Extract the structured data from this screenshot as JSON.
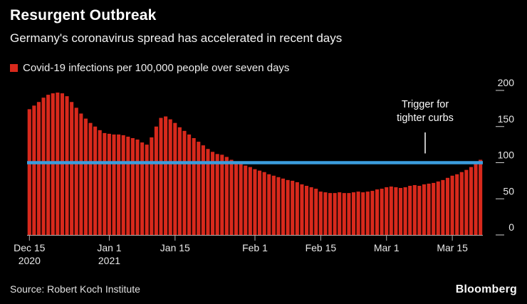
{
  "header": {
    "title": "Resurgent Outbreak",
    "subtitle": "Germany's coronavirus spread has accelerated in recent days",
    "legend_label": "Covid-19 infections per 100,000 people over seven days"
  },
  "annotation": {
    "line1": "Trigger for",
    "line2": "tighter curbs"
  },
  "footer": {
    "source": "Source: Robert Koch Institute",
    "logo": "Bloomberg"
  },
  "colors": {
    "background": "#000000",
    "bar": "#d8291c",
    "reference_line": "#3b9dde",
    "axis": "#b0b0b0",
    "tick_label": "#e8e8e8"
  },
  "chart_data": {
    "type": "bar",
    "title": "Resurgent Outbreak",
    "subtitle": "Germany's coronavirus spread has accelerated in recent days",
    "legend": "Covid-19 infections per 100,000 people over seven days",
    "ylabel": "Covid-19 infections per 100,000 people over seven days",
    "ylim": [
      0,
      200
    ],
    "yticks": [
      200,
      150,
      100,
      50,
      0
    ],
    "y_axis_side": "right",
    "grid": false,
    "x_ticks": [
      {
        "label": "Dec 15",
        "sublabel": "2020",
        "index": 0
      },
      {
        "label": "Jan 1",
        "sublabel": "2021",
        "index": 17
      },
      {
        "label": "Jan 15",
        "sublabel": "",
        "index": 31
      },
      {
        "label": "Feb 1",
        "sublabel": "",
        "index": 48
      },
      {
        "label": "Feb 15",
        "sublabel": "",
        "index": 62
      },
      {
        "label": "Mar 1",
        "sublabel": "",
        "index": 76
      },
      {
        "label": "Mar 15",
        "sublabel": "",
        "index": 90
      }
    ],
    "values": [
      174,
      179,
      184,
      190,
      194,
      196,
      197,
      196,
      192,
      184,
      176,
      168,
      161,
      155,
      150,
      145,
      141,
      140,
      139,
      139,
      138,
      136,
      134,
      132,
      128,
      125,
      135,
      150,
      162,
      164,
      160,
      155,
      149,
      144,
      139,
      134,
      129,
      124,
      119,
      115,
      112,
      111,
      108,
      104,
      101,
      98,
      96,
      94,
      91,
      89,
      87,
      84,
      82,
      80,
      78,
      76,
      75,
      73,
      70,
      68,
      66,
      64,
      60,
      59,
      58,
      58,
      59,
      58,
      58,
      59,
      60,
      59,
      60,
      61,
      63,
      64,
      66,
      67,
      66,
      65,
      66,
      68,
      69,
      68,
      70,
      71,
      72,
      74,
      76,
      79,
      82,
      84,
      87,
      90,
      94,
      100,
      104
    ],
    "reference_line": {
      "value": 100,
      "annotation": "Trigger for tighter curbs"
    },
    "legend_position": "top-left",
    "source": "Source: Robert Koch Institute"
  }
}
